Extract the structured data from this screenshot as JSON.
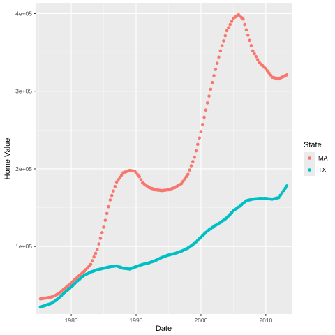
{
  "chart_data": {
    "type": "scatter",
    "xlabel": "Date",
    "ylabel": "Home.Value",
    "xlim": [
      1974.5,
      2014.0
    ],
    "ylim": [
      13000,
      413000
    ],
    "x_ticks": [
      1980,
      1990,
      2000,
      2010
    ],
    "x_tick_labels": [
      "1980",
      "1990",
      "2000",
      "2010"
    ],
    "y_ticks": [
      100000,
      200000,
      300000,
      400000
    ],
    "y_tick_labels": [
      "1e+05",
      "2e+05",
      "3e+05",
      "4e+05"
    ],
    "grid": true,
    "legend": {
      "title": "State",
      "position": "right"
    },
    "series": [
      {
        "name": "MA",
        "color": "#F8766D",
        "points": [
          [
            1975.25,
            32500
          ],
          [
            1977,
            35000
          ],
          [
            1978,
            39000
          ],
          [
            1979,
            46000
          ],
          [
            1980,
            53000
          ],
          [
            1981,
            61000
          ],
          [
            1982,
            68000
          ],
          [
            1983,
            77000
          ],
          [
            1984,
            96000
          ],
          [
            1985,
            125000
          ],
          [
            1986,
            160000
          ],
          [
            1987,
            183000
          ],
          [
            1988,
            195000
          ],
          [
            1989,
            198000
          ],
          [
            1989.8,
            197000
          ],
          [
            1990.5,
            190000
          ],
          [
            1991,
            182000
          ],
          [
            1992,
            176000
          ],
          [
            1993,
            173000
          ],
          [
            1994,
            172000
          ],
          [
            1995,
            173000
          ],
          [
            1996,
            176000
          ],
          [
            1997,
            181000
          ],
          [
            1998,
            193000
          ],
          [
            1999,
            215000
          ],
          [
            2000,
            248000
          ],
          [
            2001,
            285000
          ],
          [
            2002,
            320000
          ],
          [
            2003,
            352000
          ],
          [
            2004,
            378000
          ],
          [
            2005,
            394000
          ],
          [
            2005.8,
            398500
          ],
          [
            2006.5,
            393000
          ],
          [
            2007,
            379000
          ],
          [
            2008,
            352000
          ],
          [
            2009,
            337000
          ],
          [
            2010,
            329000
          ],
          [
            2011,
            318000
          ],
          [
            2012,
            316000
          ],
          [
            2013.25,
            321000
          ]
        ]
      },
      {
        "name": "TX",
        "color": "#00BFC4",
        "points": [
          [
            1975.25,
            22000
          ],
          [
            1977,
            27000
          ],
          [
            1978,
            33000
          ],
          [
            1979,
            41000
          ],
          [
            1980,
            48000
          ],
          [
            1981,
            56000
          ],
          [
            1982,
            63000
          ],
          [
            1983,
            67000
          ],
          [
            1984,
            70000
          ],
          [
            1985,
            72000
          ],
          [
            1986,
            74000
          ],
          [
            1987,
            75000
          ],
          [
            1988,
            72000
          ],
          [
            1989,
            71000
          ],
          [
            1990,
            74000
          ],
          [
            1991,
            77000
          ],
          [
            1992,
            79000
          ],
          [
            1993,
            82000
          ],
          [
            1994,
            86000
          ],
          [
            1995,
            89000
          ],
          [
            1996,
            91000
          ],
          [
            1997,
            94000
          ],
          [
            1998,
            98000
          ],
          [
            1999,
            104000
          ],
          [
            2000,
            112000
          ],
          [
            2001,
            120000
          ],
          [
            2002,
            126000
          ],
          [
            2003,
            131000
          ],
          [
            2004,
            137000
          ],
          [
            2005,
            146000
          ],
          [
            2006,
            152000
          ],
          [
            2007,
            159000
          ],
          [
            2008,
            161000
          ],
          [
            2009,
            162000
          ],
          [
            2010,
            162000
          ],
          [
            2011,
            161000
          ],
          [
            2012,
            163000
          ],
          [
            2012.5,
            169000
          ],
          [
            2013.25,
            178000
          ]
        ]
      }
    ]
  }
}
